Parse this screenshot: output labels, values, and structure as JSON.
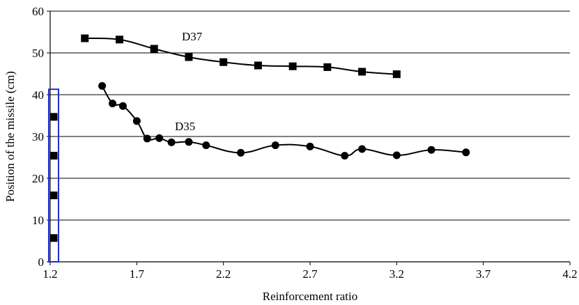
{
  "chart_data": {
    "type": "line",
    "xlabel": "Reinforcement ratio",
    "ylabel": "Position of the missile (cm)",
    "xlim": [
      1.2,
      4.2
    ],
    "ylim": [
      0,
      60
    ],
    "x_ticks": [
      1.2,
      1.7,
      2.2,
      2.7,
      3.2,
      3.7,
      4.2
    ],
    "x_tick_labels": [
      "1.2",
      "1.7",
      "2.2",
      "2.7",
      "3.2",
      "3.7",
      "4.2"
    ],
    "y_ticks": [
      0,
      10,
      20,
      30,
      40,
      50,
      60
    ],
    "y_tick_labels": [
      "0",
      "10",
      "20",
      "30",
      "40",
      "50",
      "60"
    ],
    "grid": "horizontal",
    "series": [
      {
        "name": "D37",
        "marker": "square",
        "color": "#000000",
        "x": [
          1.4,
          1.6,
          1.8,
          2.0,
          2.2,
          2.4,
          2.6,
          2.8,
          3.0,
          3.2
        ],
        "y": [
          53.5,
          53.2,
          51.0,
          49.0,
          47.8,
          47.0,
          46.8,
          46.6,
          45.5,
          44.9
        ]
      },
      {
        "name": "D35",
        "marker": "circle",
        "color": "#000000",
        "x": [
          1.5,
          1.56,
          1.62,
          1.7,
          1.76,
          1.83,
          1.9,
          2.0,
          2.1,
          2.3,
          2.5,
          2.7,
          2.9,
          3.0,
          3.2,
          3.4,
          3.6
        ],
        "y": [
          42.1,
          37.9,
          37.3,
          33.7,
          29.5,
          29.6,
          28.6,
          28.7,
          27.9,
          26.1,
          27.9,
          27.6,
          25.4,
          27.0,
          25.5,
          26.8,
          26.2
        ]
      }
    ],
    "annotations": [
      {
        "text": "D37",
        "x": 1.96,
        "y": 53.0
      },
      {
        "text": "D35",
        "x": 1.92,
        "y": 31.5
      }
    ],
    "inset_bar": {
      "x": 1.22,
      "y_range": [
        0,
        41.3
      ],
      "color": "#1f2ec9",
      "marker_y": [
        5.7,
        15.9,
        25.4,
        34.7
      ]
    }
  }
}
